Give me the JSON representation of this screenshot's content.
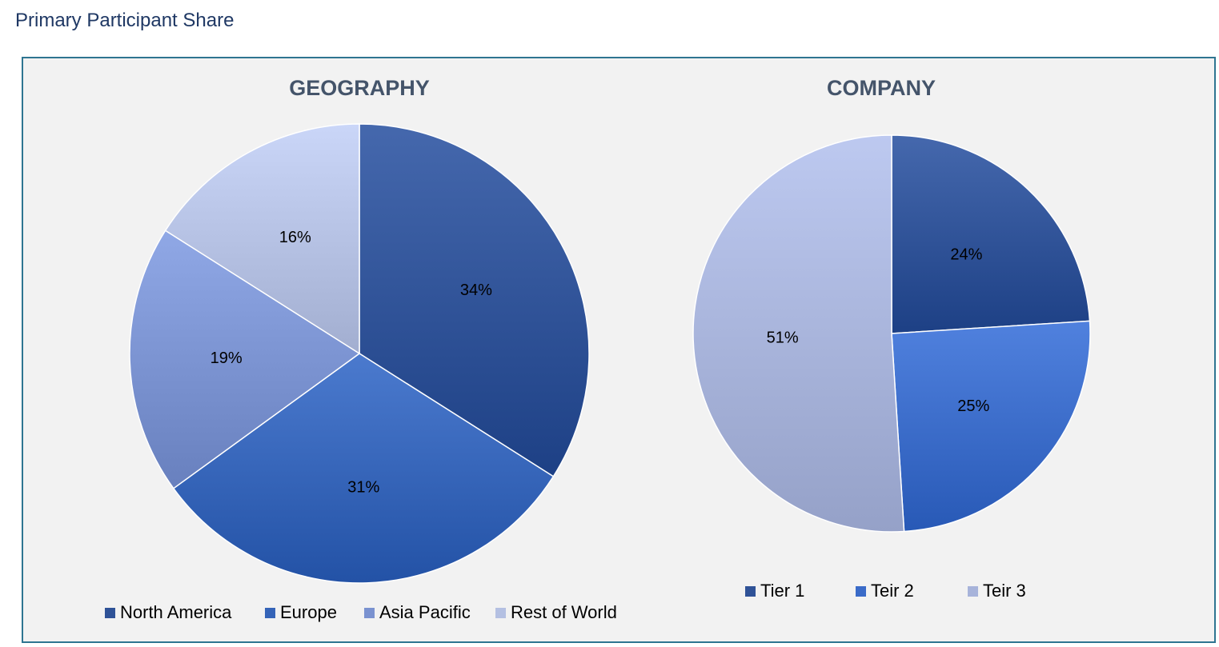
{
  "page": {
    "title": "Primary Participant Share"
  },
  "chart_data": [
    {
      "type": "pie",
      "title": "GEOGRAPHY",
      "categories": [
        "North America",
        "Europe",
        "Asia Pacific",
        "Rest of World"
      ],
      "values": [
        34,
        31,
        19,
        16
      ],
      "labels": [
        "34%",
        "31%",
        "19%",
        "16%"
      ],
      "colors": [
        "#2f5297",
        "#3564b8",
        "#7a92d0",
        "#b4c0e2"
      ],
      "legend_position": "bottom"
    },
    {
      "type": "pie",
      "title": "COMPANY",
      "categories": [
        "Tier 1",
        "Teir 2",
        "Teir 3"
      ],
      "values": [
        24,
        25,
        51
      ],
      "labels": [
        "24%",
        "25%",
        "51%"
      ],
      "colors": [
        "#2f5297",
        "#3a6bc8",
        "#a7b3da"
      ],
      "legend_position": "bottom"
    }
  ]
}
